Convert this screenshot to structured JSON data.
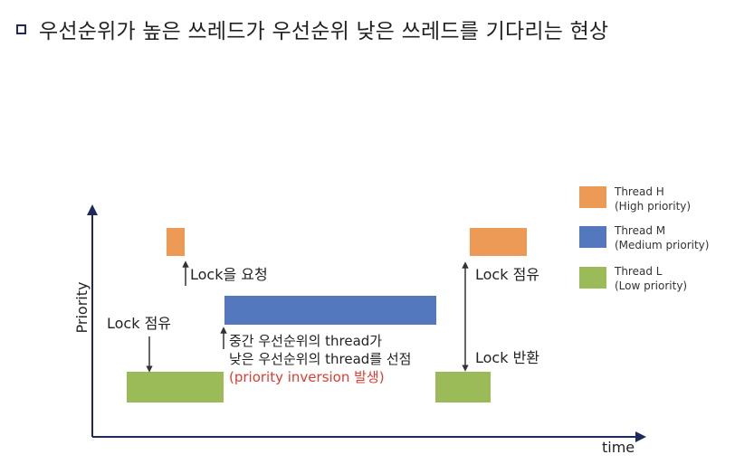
{
  "slide": {
    "title": "우선순위가 높은 쓰레드가 우선순위 낮은 쓰레드를 기다리는 현상"
  },
  "axes": {
    "y_label": "Priority",
    "x_label": "time"
  },
  "legend": [
    {
      "name": "Thread H",
      "desc": "(High priority)",
      "color": "#ee9a57"
    },
    {
      "name": "Thread M",
      "desc": "(Medium priority)",
      "color": "#5478bd"
    },
    {
      "name": "Thread L",
      "desc": "(Low priority)",
      "color": "#9bbb59"
    }
  ],
  "annotations": {
    "lock_request": "Lock을 요청",
    "lock_hold_left": "Lock 점유",
    "preempt_line1": "중간 우선순위의 thread가",
    "preempt_line2": "낮은 우선순위의 thread를 선점",
    "preempt_line3": "(priority inversion 발생)",
    "lock_hold_right": "Lock 점유",
    "lock_release": "Lock 반환"
  },
  "colors": {
    "accent_red": "#e03c31",
    "axis": "#1f2a5c"
  }
}
